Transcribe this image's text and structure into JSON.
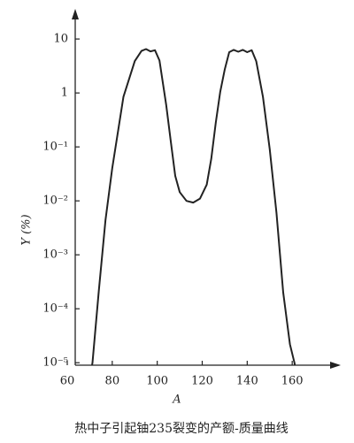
{
  "chart_data": {
    "type": "line",
    "log_y": true,
    "color": "#222222",
    "caption": "热中子引起铀235裂变的产额-质量曲线",
    "x_label": "A",
    "y_label": "Y (%)",
    "x": [
      71,
      71.2,
      74,
      77,
      80,
      85,
      90,
      93,
      95,
      97,
      99,
      101,
      104,
      106,
      108,
      110,
      113,
      116,
      119,
      122,
      124,
      126,
      128,
      130,
      132,
      134,
      136,
      138,
      140,
      142,
      144,
      147,
      150,
      153,
      156,
      159,
      161,
      161.2
    ],
    "values": [
      9e-06,
      1e-05,
      0.00021,
      0.0044,
      0.04,
      0.85,
      3.9,
      6,
      6.5,
      5.9,
      6.2,
      4,
      0.6,
      0.13,
      0.029,
      0.0145,
      0.01,
      0.0093,
      0.011,
      0.02,
      0.06,
      0.28,
      1.04,
      2.7,
      5.7,
      6.3,
      5.8,
      6.3,
      5.7,
      6.2,
      3.9,
      0.85,
      0.09,
      0.006,
      0.0002,
      2.2e-05,
      1e-05,
      9e-06
    ],
    "xlim": [
      60,
      180
    ],
    "xticks": [
      60,
      80,
      100,
      120,
      140,
      160
    ],
    "ylim": [
      9e-06,
      30
    ],
    "yticks": [
      {
        "value": 10,
        "label": "10"
      },
      {
        "value": 1,
        "label": "1"
      },
      {
        "value": 0.1,
        "label": "10⁻¹"
      },
      {
        "value": 0.01,
        "label": "10⁻²"
      },
      {
        "value": 0.001,
        "label": "10⁻³"
      },
      {
        "value": 0.0001,
        "label": "10⁻⁴"
      },
      {
        "value": 1e-05,
        "label": "10⁻⁵"
      }
    ]
  }
}
